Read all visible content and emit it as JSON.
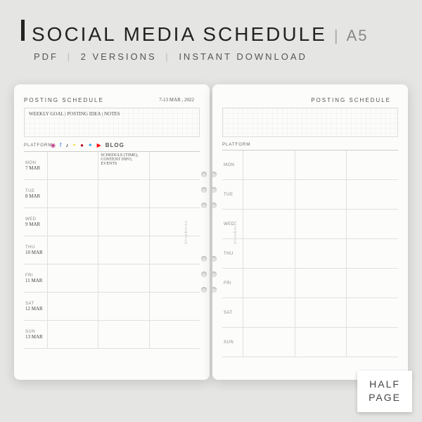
{
  "header": {
    "title": "SOCIAL MEDIA SCHEDULE",
    "size": "A5",
    "sub1": "PDF",
    "sub2": "2 VERSIONS",
    "sub3": "INSTANT DOWNLOAD"
  },
  "leftPage": {
    "sectionTitle": "POSTING SCHEDULE",
    "dateRange": "7-13 MAR , 2022",
    "notesHint": "WEEKLY GOAL | POSTING IDEA | NOTES",
    "platformLabel": "PLATFORM",
    "colNote": "SCHEDULE (TIME), CONTENT INFO, EVENTS",
    "blogLabel": "BLOG",
    "days": [
      {
        "n": "MON",
        "d": "7 MAR"
      },
      {
        "n": "TUE",
        "d": "8 MAR"
      },
      {
        "n": "WED",
        "d": "9 MAR"
      },
      {
        "n": "THU",
        "d": "10 MAR"
      },
      {
        "n": "FRI",
        "d": "11 MAR"
      },
      {
        "n": "SAT",
        "d": "12 MAR"
      },
      {
        "n": "SUN",
        "d": "13 MAR"
      }
    ]
  },
  "rightPage": {
    "sectionTitle": "POSTING SCHEDULE",
    "platformLabel": "PLATFORM",
    "days": [
      "MON",
      "TUE",
      "WED",
      "THU",
      "FRI",
      "SAT",
      "SUN"
    ]
  },
  "brand": "bliss&miss",
  "corner": {
    "l1": "HALF",
    "l2": "PAGE"
  }
}
